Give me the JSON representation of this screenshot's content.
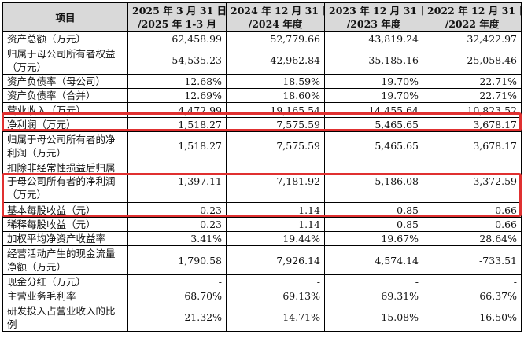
{
  "table": {
    "header": [
      {
        "line1": "项目",
        "line2": ""
      },
      {
        "line1": "2025 年 3 月 31 日",
        "line2": "/2025 年 1-3 月"
      },
      {
        "line1": "2024 年 12 月 31 日",
        "line2": "/2024 年度"
      },
      {
        "line1": "2023 年 12 月 31 日",
        "line2": "/2023 年度"
      },
      {
        "line1": "2022 年 12 月 31 日",
        "line2": "/2022 年度"
      }
    ],
    "rows": [
      {
        "label": "资产总额（万元）",
        "values": [
          "62,458.99",
          "52,779.66",
          "43,819.24",
          "32,422.97"
        ]
      },
      {
        "label": "归属于母公司所有者权益（万元）",
        "values": [
          "54,535.23",
          "42,962.84",
          "35,185.16",
          "25,058.46"
        ]
      },
      {
        "label": "资产负债率（母公司）",
        "values": [
          "12.68%",
          "18.59%",
          "19.70%",
          "22.71%"
        ]
      },
      {
        "label": "资产负债率（合并）",
        "values": [
          "12.69%",
          "18.60%",
          "19.70%",
          "22.71%"
        ]
      },
      {
        "label": "营业收入（万元）",
        "values": [
          "4,472.99",
          "19,165.54",
          "14,455.64",
          "10,823.52"
        ]
      },
      {
        "label": "净利润（万元）",
        "values": [
          "1,518.27",
          "7,575.59",
          "5,465.65",
          "3,678.17"
        ]
      },
      {
        "label": "归属于母公司所有者的净利润（万元）",
        "values": [
          "1,518.27",
          "7,575.59",
          "5,465.65",
          "3,678.17"
        ]
      },
      {
        "label": "扣除非经常性损益后归属于母公司所有者的净利润（万元）",
        "values": [
          "1,397.11",
          "7,181.92",
          "5,186.08",
          "3,372.59"
        ]
      },
      {
        "label": "基本每股收益（元）",
        "values": [
          "0.23",
          "1.14",
          "0.85",
          "0.66"
        ]
      },
      {
        "label": "稀释每股收益（元）",
        "values": [
          "0.23",
          "1.14",
          "0.85",
          "0.66"
        ]
      },
      {
        "label": "加权平均净资产收益率",
        "values": [
          "3.41%",
          "19.44%",
          "19.67%",
          "28.64%"
        ]
      },
      {
        "label": "经营活动产生的现金流量净额（万元）",
        "values": [
          "1,790.58",
          "7,926.14",
          "4,574.14",
          "-733.51"
        ]
      },
      {
        "label": "现金分红（万元）",
        "values": [
          "-",
          "-",
          "-",
          "-"
        ]
      },
      {
        "label": "主营业务毛利率",
        "values": [
          "68.70%",
          "69.13%",
          "69.31%",
          "66.37%"
        ]
      },
      {
        "label": "研发投入占营业收入的比例",
        "values": [
          "21.32%",
          "14.71%",
          "15.08%",
          "16.50%"
        ]
      }
    ]
  },
  "highlight_color": "#e03030",
  "header_bg": "#d9d9d9"
}
